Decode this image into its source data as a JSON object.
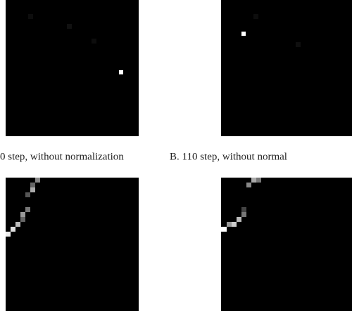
{
  "captions": [
    "0 step, without normalization",
    "B. 110 step, without normal"
  ]
}
